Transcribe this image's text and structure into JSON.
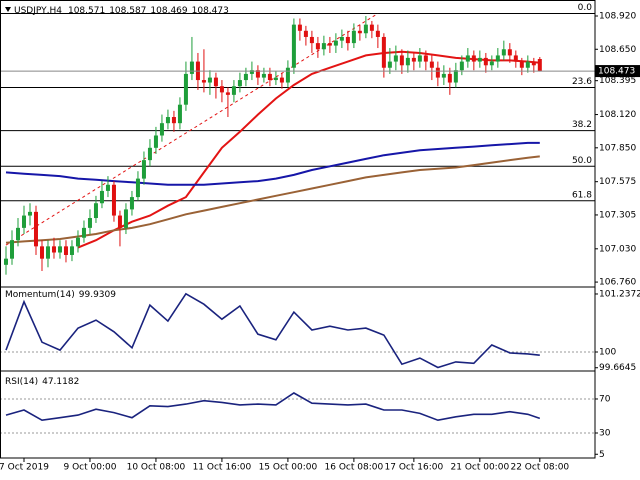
{
  "chart_data": [
    {
      "type": "candlestick",
      "title": "USDJPY,H4",
      "up_color": "#1e9e3a",
      "down_color": "#e01010",
      "xlim": [
        -1,
        98.2
      ],
      "xticks": [
        {
          "value": 3,
          "label": "7 Oct 2019"
        },
        {
          "value": 14,
          "label": "9 Oct 00:00"
        },
        {
          "value": 25,
          "label": "10 Oct 08:00"
        },
        {
          "value": 36,
          "label": "11 Oct 16:00"
        },
        {
          "value": 47,
          "label": "15 Oct 00:00"
        },
        {
          "value": 58,
          "label": "16 Oct 08:00"
        },
        {
          "value": 68,
          "label": "17 Oct 16:00"
        },
        {
          "value": 79,
          "label": "21 Oct 00:00"
        },
        {
          "value": 89,
          "label": "22 Oct 08:00"
        }
      ],
      "ylim": [
        106.72,
        109.05
      ],
      "yticks": [
        {
          "value": 108.92,
          "label": "108.920"
        },
        {
          "value": 108.65,
          "label": "108.650"
        },
        108.395,
        {
          "value": 108.12,
          "label": "108.120"
        },
        {
          "value": 107.85,
          "label": "107.850"
        },
        107.575,
        107.305,
        {
          "value": 107.03,
          "label": "107.030"
        },
        {
          "value": 106.76,
          "label": "106.760"
        }
      ],
      "open": [
        106.9,
        106.95,
        107.1,
        107.2,
        107.3,
        107.33,
        107.05,
        106.95,
        107.05,
        107.0,
        107.05,
        106.98,
        107.05,
        107.12,
        107.2,
        107.28,
        107.4,
        107.5,
        107.55,
        107.3,
        107.2,
        107.35,
        107.45,
        107.6,
        107.75,
        107.85,
        107.95,
        108.05,
        108.1,
        108.05,
        108.2,
        108.45,
        108.55,
        108.4,
        108.38,
        108.42,
        108.35,
        108.3,
        108.28,
        108.35,
        108.4,
        108.45,
        108.48,
        108.42,
        108.45,
        108.4,
        108.42,
        108.38,
        108.5,
        108.85,
        108.8,
        108.75,
        108.7,
        108.65,
        108.7,
        108.68,
        108.72,
        108.75,
        108.7,
        108.8,
        108.78,
        108.85,
        108.8,
        108.75,
        108.5,
        108.55,
        108.6,
        108.52,
        108.58,
        108.55,
        108.6,
        108.55,
        108.5,
        108.42,
        108.45,
        108.38,
        108.48,
        108.55,
        108.6,
        108.55,
        108.58,
        108.52,
        108.55,
        108.6,
        108.65,
        108.6,
        108.55,
        108.5,
        108.55,
        108.571
      ],
      "high": [
        107.05,
        107.18,
        107.28,
        107.38,
        107.4,
        107.38,
        107.1,
        107.1,
        107.12,
        107.1,
        107.1,
        107.1,
        107.18,
        107.26,
        107.35,
        107.46,
        107.58,
        107.62,
        107.58,
        107.34,
        107.4,
        107.5,
        107.66,
        107.82,
        107.92,
        108.02,
        108.12,
        108.16,
        108.15,
        108.26,
        108.55,
        108.75,
        108.62,
        108.65,
        108.48,
        108.46,
        108.4,
        108.34,
        108.4,
        108.46,
        108.5,
        108.55,
        108.52,
        108.5,
        108.5,
        108.47,
        108.46,
        108.56,
        108.9,
        108.9,
        108.84,
        108.8,
        108.75,
        108.76,
        108.75,
        108.78,
        108.81,
        108.8,
        108.86,
        108.85,
        108.92,
        108.88,
        108.85,
        108.78,
        108.66,
        108.68,
        108.65,
        108.64,
        108.62,
        108.66,
        108.64,
        108.6,
        108.55,
        108.52,
        108.5,
        108.54,
        108.6,
        108.66,
        108.64,
        108.64,
        108.62,
        108.6,
        108.66,
        108.72,
        108.7,
        108.64,
        108.58,
        108.6,
        108.58,
        108.587
      ],
      "low": [
        106.82,
        106.9,
        107.05,
        107.15,
        107.22,
        106.98,
        106.85,
        106.88,
        106.95,
        106.95,
        106.92,
        106.93,
        107.0,
        107.08,
        107.15,
        107.24,
        107.36,
        107.45,
        107.25,
        107.05,
        107.15,
        107.3,
        107.42,
        107.55,
        107.7,
        107.8,
        107.9,
        108.0,
        107.98,
        108.0,
        108.15,
        108.4,
        108.32,
        108.3,
        108.28,
        108.25,
        108.22,
        108.1,
        108.22,
        108.3,
        108.35,
        108.4,
        108.36,
        108.38,
        108.35,
        108.36,
        108.33,
        108.34,
        108.45,
        108.72,
        108.68,
        108.62,
        108.58,
        108.6,
        108.62,
        108.62,
        108.66,
        108.64,
        108.66,
        108.72,
        108.74,
        108.74,
        108.66,
        108.42,
        108.45,
        108.48,
        108.45,
        108.46,
        108.48,
        108.5,
        108.48,
        108.4,
        108.35,
        108.36,
        108.28,
        108.34,
        108.44,
        108.5,
        108.48,
        108.5,
        108.46,
        108.48,
        108.5,
        108.56,
        108.54,
        108.5,
        108.44,
        108.46,
        108.46,
        108.469
      ],
      "close": [
        106.95,
        107.1,
        107.2,
        107.3,
        107.33,
        107.05,
        106.95,
        107.05,
        107.0,
        107.05,
        106.98,
        107.05,
        107.12,
        107.2,
        107.28,
        107.4,
        107.5,
        107.55,
        107.3,
        107.2,
        107.35,
        107.45,
        107.6,
        107.75,
        107.85,
        107.95,
        108.05,
        108.1,
        108.05,
        108.2,
        108.45,
        108.55,
        108.4,
        108.38,
        108.42,
        108.35,
        108.3,
        108.28,
        108.35,
        108.4,
        108.45,
        108.48,
        108.42,
        108.45,
        108.4,
        108.42,
        108.38,
        108.5,
        108.85,
        108.8,
        108.75,
        108.7,
        108.65,
        108.7,
        108.68,
        108.72,
        108.75,
        108.7,
        108.8,
        108.78,
        108.85,
        108.8,
        108.75,
        108.5,
        108.55,
        108.6,
        108.52,
        108.58,
        108.55,
        108.6,
        108.55,
        108.5,
        108.42,
        108.45,
        108.38,
        108.48,
        108.55,
        108.6,
        108.55,
        108.58,
        108.52,
        108.55,
        108.6,
        108.65,
        108.6,
        108.55,
        108.5,
        108.55,
        108.52,
        108.473
      ],
      "overlays": [
        {
          "color": "#e31414",
          "x": [
            0,
            3,
            6,
            9,
            12,
            15,
            18,
            21,
            24,
            27,
            30,
            33,
            36,
            39,
            42,
            45,
            48,
            51,
            54,
            57,
            60,
            63,
            66,
            69,
            72,
            75,
            78,
            81,
            84,
            87,
            89
          ],
          "values": [
            null,
            null,
            null,
            null,
            107.04,
            107.1,
            107.18,
            107.25,
            107.3,
            107.38,
            107.45,
            107.65,
            107.85,
            107.98,
            108.12,
            108.25,
            108.36,
            108.45,
            108.5,
            108.55,
            108.6,
            108.62,
            108.63,
            108.62,
            108.6,
            108.58,
            108.57,
            108.56,
            108.56,
            108.55,
            108.54
          ]
        },
        {
          "color": "#1616a8",
          "x": [
            0,
            3,
            6,
            9,
            12,
            15,
            18,
            21,
            24,
            27,
            30,
            33,
            36,
            39,
            42,
            45,
            48,
            51,
            54,
            57,
            60,
            63,
            66,
            69,
            72,
            75,
            78,
            81,
            84,
            87,
            89
          ],
          "values": [
            107.65,
            107.64,
            107.63,
            107.62,
            107.6,
            107.59,
            107.58,
            107.57,
            107.56,
            107.55,
            107.55,
            107.55,
            107.56,
            107.57,
            107.58,
            107.6,
            107.63,
            107.67,
            107.7,
            107.73,
            107.76,
            107.79,
            107.81,
            107.83,
            107.84,
            107.85,
            107.86,
            107.87,
            107.88,
            107.89,
            107.89
          ]
        },
        {
          "color": "#9a6236",
          "x": [
            0,
            3,
            6,
            9,
            12,
            15,
            18,
            21,
            24,
            27,
            30,
            33,
            36,
            39,
            42,
            45,
            48,
            51,
            54,
            57,
            60,
            63,
            66,
            69,
            72,
            75,
            78,
            81,
            84,
            87,
            89
          ],
          "values": [
            107.08,
            107.09,
            107.1,
            107.11,
            107.13,
            107.15,
            107.18,
            107.2,
            107.23,
            107.27,
            107.31,
            107.34,
            107.37,
            107.4,
            107.43,
            107.46,
            107.49,
            107.52,
            107.55,
            107.58,
            107.61,
            107.63,
            107.65,
            107.67,
            107.68,
            107.69,
            107.71,
            107.73,
            107.75,
            107.77,
            107.78
          ]
        }
      ],
      "trendline": {
        "color": "#e31414",
        "x": [
          0,
          62
        ],
        "values": [
          107.06,
          108.94
        ]
      },
      "fib_levels": [
        {
          "label": "0.0",
          "value": 108.94
        },
        {
          "label": "23.6",
          "value": 108.34
        },
        {
          "label": "38.2",
          "value": 107.99
        },
        {
          "label": "50.0",
          "value": 107.7
        },
        {
          "label": "61.8",
          "value": 107.42
        }
      ]
    },
    {
      "type": "line",
      "title": "Momentum(14)",
      "color": "#1a237e",
      "xlim": [
        -1,
        98.2
      ],
      "ylim": [
        99.595,
        101.386
      ],
      "yticks": [
        101.2372,
        100,
        99.6645
      ],
      "levels": [
        100
      ],
      "x": [
        0,
        3,
        6,
        9,
        12,
        15,
        18,
        21,
        24,
        27,
        30,
        33,
        36,
        39,
        42,
        45,
        48,
        51,
        54,
        57,
        60,
        63,
        66,
        69,
        72,
        75,
        78,
        81,
        84,
        87,
        89
      ],
      "values": [
        100.04,
        101.07,
        100.21,
        100.04,
        100.51,
        100.68,
        100.43,
        100.09,
        101.0,
        100.66,
        101.24,
        101.02,
        100.7,
        100.98,
        100.38,
        100.26,
        100.85,
        100.47,
        100.55,
        100.47,
        100.51,
        100.36,
        99.74,
        99.87,
        99.67,
        99.79,
        99.76,
        100.15,
        99.98,
        99.96,
        99.9309
      ]
    },
    {
      "type": "line",
      "title": "RSI(14)",
      "color": "#1a237e",
      "xlim": [
        -1,
        98.2
      ],
      "ylim": [
        0.6,
        102.9
      ],
      "yticks": [
        70,
        30,
        5
      ],
      "levels": [
        70,
        30
      ],
      "x": [
        0,
        3,
        6,
        9,
        12,
        15,
        18,
        21,
        24,
        27,
        30,
        33,
        36,
        39,
        42,
        45,
        48,
        51,
        54,
        57,
        60,
        63,
        66,
        69,
        72,
        75,
        78,
        81,
        84,
        87,
        89
      ],
      "values": [
        51,
        57,
        45,
        48,
        51,
        58,
        54,
        48,
        62,
        61,
        64,
        68,
        66,
        63,
        64,
        63,
        77,
        65,
        64,
        63,
        64,
        57,
        57,
        53,
        45,
        49,
        52,
        52,
        55,
        52,
        47.1182
      ]
    }
  ]
}
